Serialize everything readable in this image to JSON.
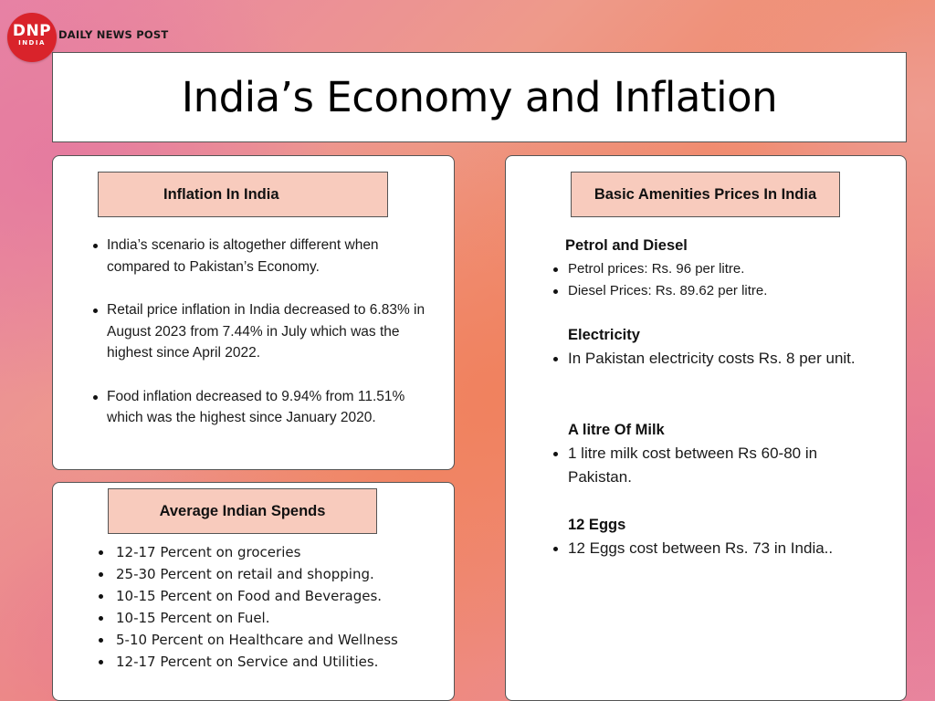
{
  "brand": {
    "logo_main": "DNP",
    "logo_sub": "INDIA",
    "name": "DAILY NEWS POST"
  },
  "title": "India’s Economy and Inflation",
  "inflation": {
    "heading": "Inflation In India",
    "items": [
      "India’s scenario is altogether different when compared to Pakistan’s Economy.",
      "Retail price inflation in India decreased to 6.83% in August 2023 from 7.44% in July which was the highest since April 2022.",
      "Food inflation decreased to 9.94% from 11.51% which was the highest since January 2020."
    ]
  },
  "spends": {
    "heading": "Average Indian Spends",
    "items": [
      "12-17 Percent on groceries",
      "25-30 Percent on retail and shopping.",
      "10-15 Percent on Food and Beverages.",
      "10-15 Percent on Fuel.",
      "5-10 Percent on Healthcare and Wellness",
      "12-17 Percent on Service and Utilities."
    ]
  },
  "prices": {
    "heading": "Basic Amenities Prices In India",
    "sections": [
      {
        "title": "Petrol and Diesel",
        "items": [
          "Petrol prices: Rs. 96 per litre.",
          "Diesel Prices:  Rs. 89.62 per litre."
        ]
      },
      {
        "title": "Electricity",
        "items": [
          "In Pakistan electricity costs Rs. 8 per unit."
        ]
      },
      {
        "title": "A litre Of Milk",
        "items": [
          "1 litre milk cost between Rs 60-80 in Pakistan."
        ]
      },
      {
        "title": "12 Eggs",
        "items": [
          "12 Eggs cost between Rs. 73 in India.."
        ]
      }
    ]
  },
  "colors": {
    "logo_red": "#d9232b",
    "pill_fill": "#f8cbbd",
    "box_fill": "#ffffff"
  }
}
